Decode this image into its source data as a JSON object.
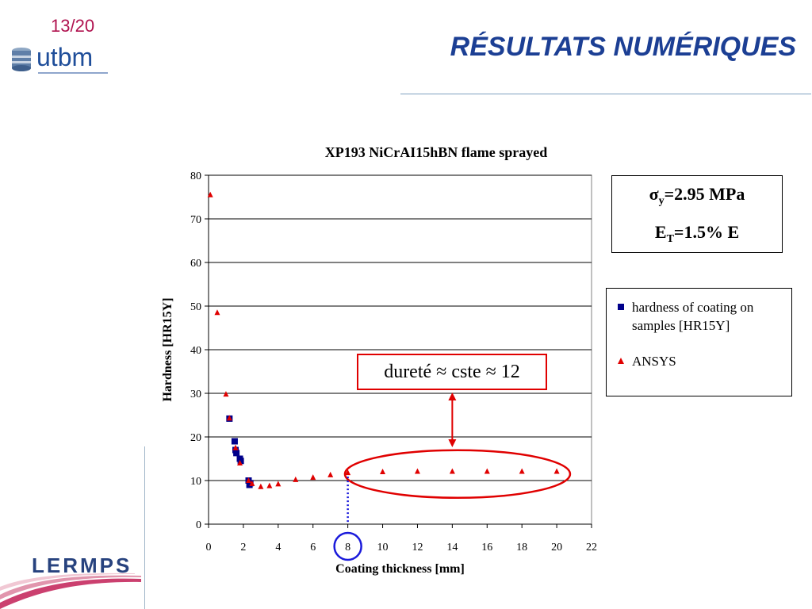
{
  "header": {
    "slide_number": "13/20",
    "logo_text": "utbm",
    "title": "RÉSULTATS NUMÉRIQUES"
  },
  "footer": {
    "logo_text": "LERMPS"
  },
  "info_box": {
    "line1_symbol": "σ",
    "line1_sub": "y",
    "line1_value": "=2.95 MPa",
    "line2_symbol": "E",
    "line2_sub": "T",
    "line2_value": "=1.5% E"
  },
  "callout": {
    "text": "dureté ≈ cste ≈ 12"
  },
  "colors": {
    "title": "#1c3f94",
    "slide_number": "#b0124f",
    "series_coating": "#00008b",
    "series_ansys": "#e00000",
    "highlight_circle": "#1a1adb"
  },
  "chart_data": {
    "type": "scatter",
    "title": "XP193 NiCrAI15hBN flame sprayed",
    "xlabel": "Coating thickness [mm]",
    "ylabel": "Hardness [HR15Y]",
    "xlim": [
      0,
      22
    ],
    "ylim": [
      0,
      80
    ],
    "xticks": [
      0,
      2,
      4,
      6,
      8,
      10,
      12,
      14,
      16,
      18,
      20,
      22
    ],
    "yticks": [
      0,
      10,
      20,
      30,
      40,
      50,
      60,
      70,
      80
    ],
    "grid": "horizontal",
    "legend_position": "right",
    "series": [
      {
        "name": "hardness of coating on samples [HR15Y]",
        "marker": "square",
        "points": [
          [
            1.2,
            24.2
          ],
          [
            1.5,
            19
          ],
          [
            1.55,
            17
          ],
          [
            1.6,
            16.3
          ],
          [
            1.8,
            15
          ],
          [
            1.85,
            14.5
          ],
          [
            2.3,
            10
          ],
          [
            2.4,
            9.4
          ],
          [
            2.35,
            9
          ]
        ]
      },
      {
        "name": "ANSYS",
        "marker": "triangle",
        "points": [
          [
            0.1,
            75.5
          ],
          [
            0.5,
            48.5
          ],
          [
            1.0,
            29.8
          ],
          [
            1.2,
            24.3
          ],
          [
            1.55,
            17.5
          ],
          [
            1.8,
            14
          ],
          [
            2.3,
            10
          ],
          [
            2.5,
            9.3
          ],
          [
            3,
            8.6
          ],
          [
            3.5,
            8.8
          ],
          [
            4,
            9.2
          ],
          [
            5,
            10.2
          ],
          [
            6,
            10.7
          ],
          [
            7,
            11.3
          ],
          [
            8,
            11.8
          ],
          [
            10,
            12
          ],
          [
            12,
            12.1
          ],
          [
            14,
            12.1
          ],
          [
            16,
            12.1
          ],
          [
            18,
            12.1
          ],
          [
            20,
            12.1
          ]
        ]
      }
    ]
  }
}
